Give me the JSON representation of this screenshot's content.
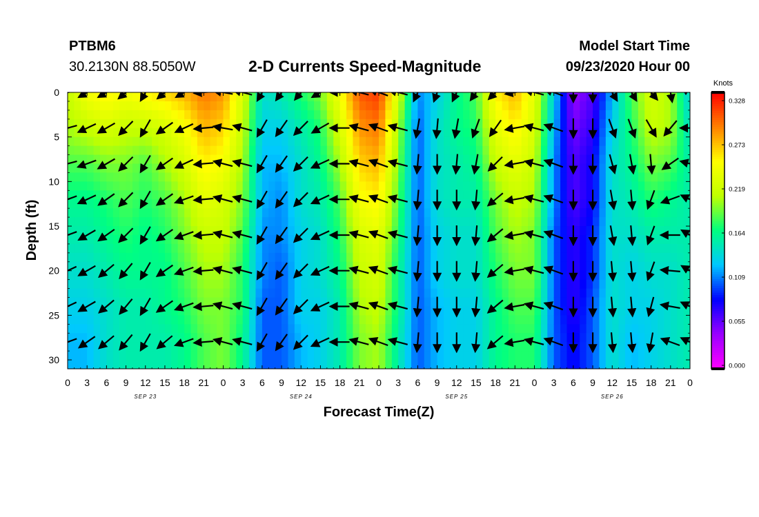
{
  "header": {
    "station": "PTBM6",
    "coordinates": "30.2130N 88.5050W",
    "title": "2-D Currents Speed-Magnitude",
    "model_start_label": "Model Start Time",
    "model_start_value": "09/23/2020 Hour 00"
  },
  "chart_data": {
    "type": "heatmap",
    "title": "2-D Currents Speed-Magnitude",
    "xlabel": "Forecast Time(Z)",
    "ylabel": "Depth (ft)",
    "x_tick_labels": [
      "0",
      "3",
      "6",
      "9",
      "12",
      "15",
      "18",
      "21",
      "0",
      "3",
      "6",
      "9",
      "12",
      "15",
      "18",
      "21",
      "0",
      "3",
      "6",
      "9",
      "12",
      "15",
      "18",
      "21",
      "0",
      "3",
      "6",
      "9",
      "12",
      "15",
      "18",
      "21",
      "0"
    ],
    "date_labels": [
      "SEP 23",
      "SEP 24",
      "SEP 25",
      "SEP 26"
    ],
    "y_tick_labels": [
      "0",
      "5",
      "10",
      "15",
      "20",
      "25",
      "30"
    ],
    "ylim": [
      0,
      31
    ],
    "y_inverted": true,
    "colorbar": {
      "unit": "Knots",
      "tick_labels": [
        "0.328",
        "0.273",
        "0.219",
        "0.164",
        "0.109",
        "0.055",
        "0.000"
      ],
      "range": [
        0.0,
        0.328
      ],
      "colors": [
        "#ff00ff",
        "#9a00ff",
        "#0000ff",
        "#00c8ff",
        "#00ff80",
        "#c0ff00",
        "#ffff00",
        "#ff8000",
        "#ff0000"
      ]
    },
    "depths_ft": [
      0,
      4,
      8,
      12,
      16,
      20,
      24,
      28
    ],
    "columns": [
      {
        "hour": 0,
        "speed": [
          0.21,
          0.2,
          0.18,
          0.16,
          0.15,
          0.14,
          0.13,
          0.12
        ]
      },
      {
        "hour": 3,
        "speed": [
          0.24,
          0.21,
          0.18,
          0.16,
          0.15,
          0.14,
          0.13,
          0.12
        ]
      },
      {
        "hour": 6,
        "speed": [
          0.25,
          0.22,
          0.19,
          0.17,
          0.16,
          0.15,
          0.14,
          0.14
        ]
      },
      {
        "hour": 9,
        "speed": [
          0.24,
          0.21,
          0.19,
          0.18,
          0.17,
          0.16,
          0.15,
          0.15
        ]
      },
      {
        "hour": 12,
        "speed": [
          0.25,
          0.21,
          0.18,
          0.17,
          0.16,
          0.16,
          0.15,
          0.15
        ]
      },
      {
        "hour": 15,
        "speed": [
          0.26,
          0.22,
          0.2,
          0.18,
          0.17,
          0.16,
          0.16,
          0.15
        ]
      },
      {
        "hour": 18,
        "speed": [
          0.27,
          0.24,
          0.22,
          0.2,
          0.19,
          0.18,
          0.17,
          0.16
        ]
      },
      {
        "hour": 21,
        "speed": [
          0.29,
          0.27,
          0.25,
          0.23,
          0.21,
          0.2,
          0.19,
          0.18
        ]
      },
      {
        "hour": 24,
        "speed": [
          0.28,
          0.26,
          0.24,
          0.22,
          0.21,
          0.2,
          0.19,
          0.19
        ]
      },
      {
        "hour": 27,
        "speed": [
          0.22,
          0.21,
          0.2,
          0.19,
          0.18,
          0.17,
          0.17,
          0.16
        ]
      },
      {
        "hour": 30,
        "speed": [
          0.14,
          0.13,
          0.12,
          0.12,
          0.11,
          0.11,
          0.1,
          0.1
        ]
      },
      {
        "hour": 33,
        "speed": [
          0.15,
          0.13,
          0.12,
          0.11,
          0.11,
          0.1,
          0.1,
          0.1
        ]
      },
      {
        "hour": 36,
        "speed": [
          0.17,
          0.15,
          0.14,
          0.14,
          0.13,
          0.13,
          0.13,
          0.12
        ]
      },
      {
        "hour": 39,
        "speed": [
          0.19,
          0.17,
          0.16,
          0.15,
          0.14,
          0.14,
          0.13,
          0.13
        ]
      },
      {
        "hour": 42,
        "speed": [
          0.24,
          0.22,
          0.2,
          0.18,
          0.17,
          0.16,
          0.15,
          0.15
        ]
      },
      {
        "hour": 45,
        "speed": [
          0.3,
          0.28,
          0.26,
          0.24,
          0.22,
          0.21,
          0.2,
          0.19
        ]
      },
      {
        "hour": 48,
        "speed": [
          0.31,
          0.29,
          0.27,
          0.25,
          0.23,
          0.22,
          0.21,
          0.2
        ]
      },
      {
        "hour": 51,
        "speed": [
          0.22,
          0.2,
          0.19,
          0.18,
          0.17,
          0.16,
          0.16,
          0.15
        ]
      },
      {
        "hour": 54,
        "speed": [
          0.11,
          0.1,
          0.1,
          0.1,
          0.1,
          0.1,
          0.1,
          0.1
        ]
      },
      {
        "hour": 57,
        "speed": [
          0.13,
          0.14,
          0.14,
          0.14,
          0.13,
          0.13,
          0.12,
          0.12
        ]
      },
      {
        "hour": 60,
        "speed": [
          0.16,
          0.16,
          0.15,
          0.15,
          0.14,
          0.14,
          0.13,
          0.13
        ]
      },
      {
        "hour": 63,
        "speed": [
          0.18,
          0.17,
          0.16,
          0.15,
          0.14,
          0.14,
          0.13,
          0.13
        ]
      },
      {
        "hour": 66,
        "speed": [
          0.25,
          0.23,
          0.21,
          0.19,
          0.18,
          0.17,
          0.16,
          0.16
        ]
      },
      {
        "hour": 69,
        "speed": [
          0.27,
          0.25,
          0.23,
          0.21,
          0.2,
          0.19,
          0.18,
          0.17
        ]
      },
      {
        "hour": 72,
        "speed": [
          0.23,
          0.22,
          0.21,
          0.2,
          0.19,
          0.19,
          0.18,
          0.17
        ]
      },
      {
        "hour": 75,
        "speed": [
          0.13,
          0.12,
          0.11,
          0.11,
          0.1,
          0.1,
          0.1,
          0.1
        ]
      },
      {
        "hour": 78,
        "speed": [
          0.04,
          0.05,
          0.06,
          0.06,
          0.07,
          0.07,
          0.07,
          0.08
        ]
      },
      {
        "hour": 81,
        "speed": [
          0.06,
          0.07,
          0.08,
          0.08,
          0.09,
          0.09,
          0.1,
          0.1
        ]
      },
      {
        "hour": 84,
        "speed": [
          0.12,
          0.13,
          0.14,
          0.14,
          0.14,
          0.14,
          0.14,
          0.14
        ]
      },
      {
        "hour": 87,
        "speed": [
          0.18,
          0.17,
          0.16,
          0.15,
          0.14,
          0.13,
          0.13,
          0.12
        ]
      },
      {
        "hour": 90,
        "speed": [
          0.22,
          0.21,
          0.19,
          0.17,
          0.15,
          0.14,
          0.13,
          0.13
        ]
      },
      {
        "hour": 93,
        "speed": [
          0.2,
          0.2,
          0.18,
          0.16,
          0.15,
          0.14,
          0.14,
          0.14
        ]
      },
      {
        "hour": 96,
        "speed": [
          0.13,
          0.14,
          0.15,
          0.15,
          0.15,
          0.15,
          0.15,
          0.15
        ]
      }
    ],
    "vectors": [
      {
        "hour": 0,
        "dir_deg": [
          260,
          255,
          255,
          250,
          250,
          245,
          245,
          250
        ]
      },
      {
        "hour": 3,
        "dir_deg": [
          240,
          245,
          250,
          245,
          240,
          240,
          240,
          235
        ]
      },
      {
        "hour": 6,
        "dir_deg": [
          240,
          240,
          240,
          235,
          235,
          230,
          230,
          230
        ]
      },
      {
        "hour": 9,
        "dir_deg": [
          230,
          225,
          225,
          225,
          225,
          220,
          220,
          220
        ]
      },
      {
        "hour": 12,
        "dir_deg": [
          210,
          210,
          210,
          210,
          210,
          210,
          210,
          210
        ]
      },
      {
        "hour": 15,
        "dir_deg": [
          230,
          235,
          235,
          235,
          235,
          235,
          235,
          230
        ]
      },
      {
        "hour": 18,
        "dir_deg": [
          240,
          245,
          245,
          250,
          250,
          250,
          250,
          250
        ]
      },
      {
        "hour": 21,
        "dir_deg": [
          265,
          265,
          265,
          265,
          265,
          265,
          265,
          265
        ]
      },
      {
        "hour": 24,
        "dir_deg": [
          280,
          280,
          285,
          285,
          285,
          285,
          285,
          285
        ]
      },
      {
        "hour": 27,
        "dir_deg": [
          285,
          285,
          285,
          285,
          285,
          285,
          285,
          285
        ]
      },
      {
        "hour": 30,
        "dir_deg": [
          210,
          210,
          210,
          210,
          210,
          210,
          210,
          210
        ]
      },
      {
        "hour": 33,
        "dir_deg": [
          215,
          215,
          215,
          215,
          215,
          215,
          215,
          215
        ]
      },
      {
        "hour": 36,
        "dir_deg": [
          220,
          225,
          225,
          225,
          225,
          225,
          225,
          225
        ]
      },
      {
        "hour": 39,
        "dir_deg": [
          240,
          240,
          245,
          245,
          245,
          245,
          245,
          245
        ]
      },
      {
        "hour": 42,
        "dir_deg": [
          270,
          270,
          270,
          270,
          270,
          270,
          270,
          270
        ]
      },
      {
        "hour": 45,
        "dir_deg": [
          285,
          285,
          285,
          285,
          285,
          285,
          285,
          285
        ]
      },
      {
        "hour": 48,
        "dir_deg": [
          290,
          290,
          290,
          290,
          290,
          290,
          290,
          290
        ]
      },
      {
        "hour": 51,
        "dir_deg": [
          285,
          285,
          285,
          285,
          285,
          285,
          285,
          285
        ]
      },
      {
        "hour": 54,
        "dir_deg": [
          205,
          190,
          185,
          185,
          185,
          185,
          185,
          185
        ]
      },
      {
        "hour": 57,
        "dir_deg": [
          200,
          185,
          180,
          180,
          180,
          180,
          180,
          180
        ]
      },
      {
        "hour": 60,
        "dir_deg": [
          205,
          190,
          185,
          180,
          180,
          180,
          180,
          180
        ]
      },
      {
        "hour": 63,
        "dir_deg": [
          215,
          200,
          190,
          185,
          185,
          185,
          185,
          185
        ]
      },
      {
        "hour": 66,
        "dir_deg": [
          225,
          215,
          225,
          230,
          230,
          230,
          230,
          230
        ]
      },
      {
        "hour": 69,
        "dir_deg": [
          260,
          260,
          260,
          260,
          260,
          260,
          260,
          260
        ]
      },
      {
        "hour": 72,
        "dir_deg": [
          285,
          285,
          285,
          285,
          285,
          285,
          285,
          285
        ]
      },
      {
        "hour": 75,
        "dir_deg": [
          290,
          290,
          290,
          290,
          290,
          290,
          290,
          290
        ]
      },
      {
        "hour": 78,
        "dir_deg": [
          180,
          180,
          180,
          180,
          180,
          180,
          180,
          180
        ]
      },
      {
        "hour": 81,
        "dir_deg": [
          180,
          180,
          180,
          180,
          180,
          180,
          180,
          180
        ]
      },
      {
        "hour": 84,
        "dir_deg": [
          150,
          160,
          165,
          170,
          170,
          175,
          175,
          175
        ]
      },
      {
        "hour": 87,
        "dir_deg": [
          150,
          160,
          170,
          175,
          175,
          175,
          175,
          175
        ]
      },
      {
        "hour": 90,
        "dir_deg": [
          140,
          150,
          175,
          200,
          200,
          200,
          195,
          190
        ]
      },
      {
        "hour": 93,
        "dir_deg": [
          170,
          220,
          235,
          250,
          270,
          275,
          280,
          290
        ]
      },
      {
        "hour": 96,
        "dir_deg": [
          300,
          270,
          285,
          295,
          300,
          300,
          295,
          295
        ]
      }
    ]
  }
}
